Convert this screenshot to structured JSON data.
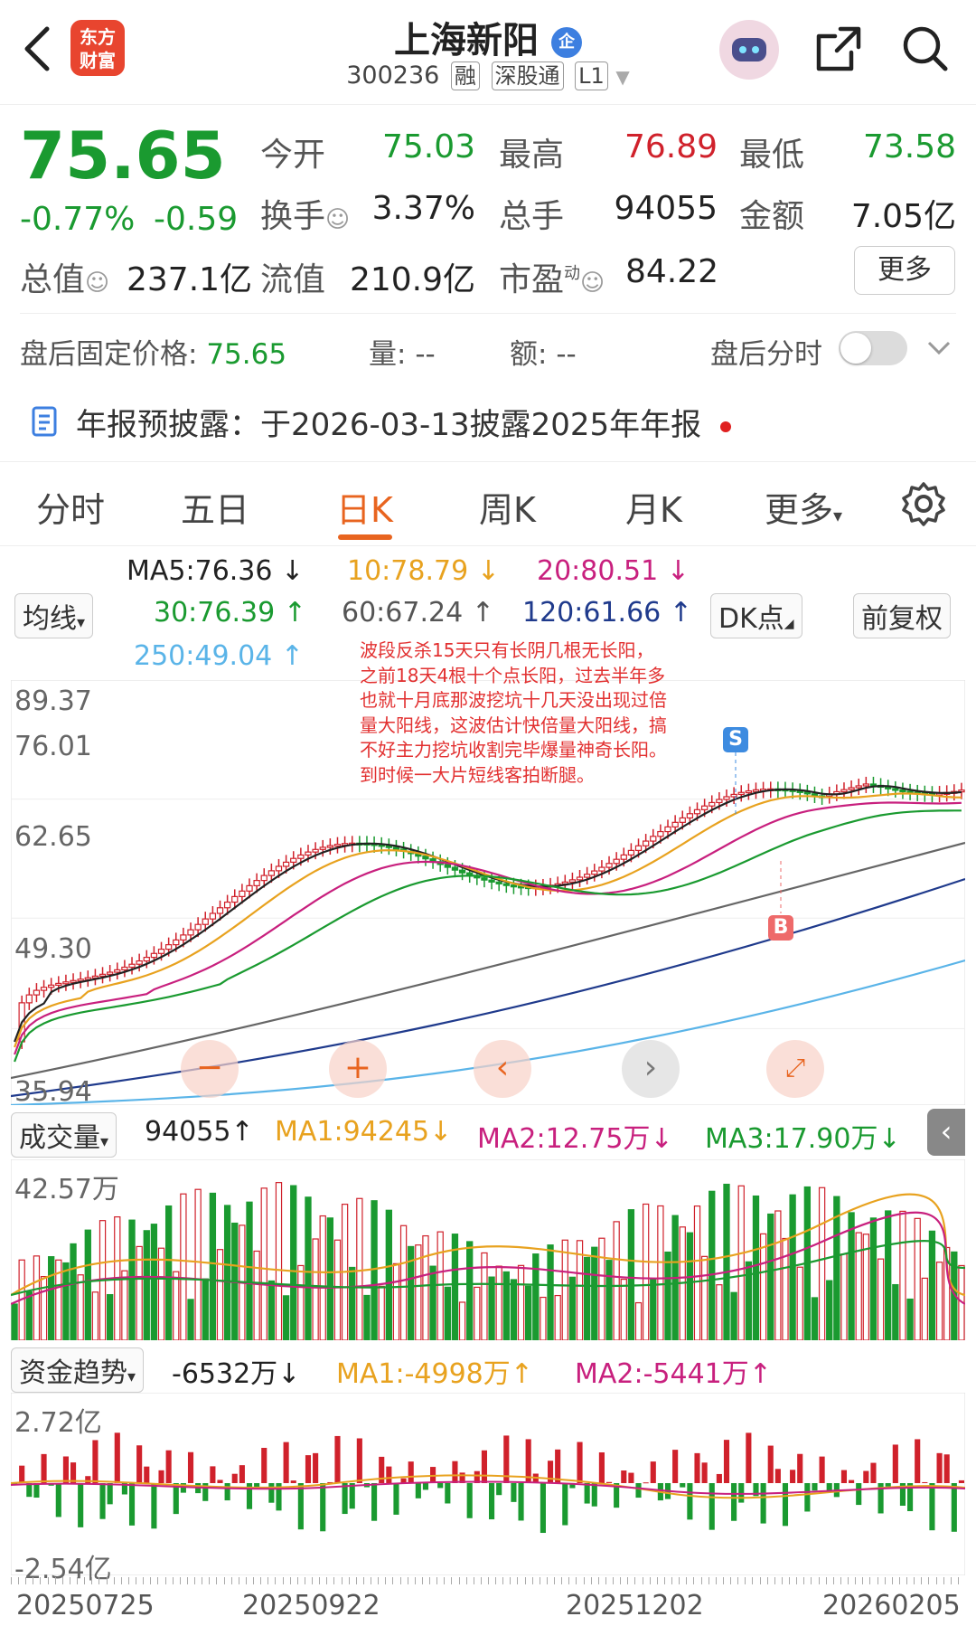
{
  "header": {
    "logo_line1": "东方",
    "logo_line2": "财富",
    "title": "上海新阳",
    "title_badge": "企",
    "code": "300236",
    "tag_rong": "融",
    "tag_sgt": "深股通",
    "tag_level": "L1"
  },
  "quote": {
    "price": "75.65",
    "change_pct": "-0.77%",
    "change": "-0.59",
    "open_label": "今开",
    "open": "75.03",
    "high_label": "最高",
    "high": "76.89",
    "low_label": "最低",
    "low": "73.58",
    "turnover_label": "换手",
    "turnover": "3.37%",
    "volume_label": "总手",
    "volume": "94055",
    "amount_label": "金额",
    "amount": "7.05亿",
    "mktcap_label": "总值",
    "mktcap": "237.1亿",
    "float_label": "流值",
    "float": "210.9亿",
    "pe_label": "市盈",
    "pe_sup": "动",
    "pe": "84.22",
    "more_label": "更多"
  },
  "after_hours": {
    "price_label": "盘后固定价格:",
    "price": "75.65",
    "vol_label": "量:",
    "vol": "--",
    "amt_label": "额:",
    "amt": "--",
    "timeshare_label": "盘后分时"
  },
  "notice": {
    "text": "年报预披露：于2026-03-13披露2025年年报"
  },
  "tabs": [
    "分时",
    "五日",
    "日K",
    "周K",
    "月K",
    "更多"
  ],
  "active_tab": "日K",
  "ma": {
    "ma5": "MA5:76.36 ↓",
    "ma10": "10:78.79 ↓",
    "ma20": "20:80.51 ↓",
    "ma30": "30:76.39 ↑",
    "ma60": "60:67.24 ↑",
    "ma120": "120:61.66 ↑",
    "ma250": "250:49.04 ↑",
    "selector": "均线",
    "dk": "DK点",
    "adjust": "前复权"
  },
  "kline_axis": [
    "89.37",
    "76.01",
    "62.65",
    "49.30",
    "35.94"
  ],
  "annotation": "波段反杀15天只有长阴几根无长阳，之前18天4根十个点长阳，过去半年多也就十月底那波挖坑十几天没出现过倍量大阳线，这波估计快倍量大阳线，搞不好主力挖坑收割完毕爆量神奇长阳。到时候一大片短线客拍断腿。",
  "signals": {
    "sell": "S",
    "buy": "B"
  },
  "volume": {
    "selector": "成交量",
    "value": "94055↑",
    "ma1": "MA1:94245↓",
    "ma2": "MA2:12.75万↓",
    "ma3": "MA3:17.90万↓",
    "axis_max": "42.57万"
  },
  "fund": {
    "selector": "资金趋势",
    "value": "-6532万↓",
    "ma1": "MA1:-4998万↑",
    "ma2": "MA2:-5441万↑",
    "axis_max": "2.72亿",
    "axis_min": "-2.54亿"
  },
  "dates": [
    "20250725",
    "20250922",
    "20251202",
    "20260205"
  ],
  "colors": {
    "up": "#d0212b",
    "down": "#1a9a30",
    "accent": "#e8641f"
  }
}
